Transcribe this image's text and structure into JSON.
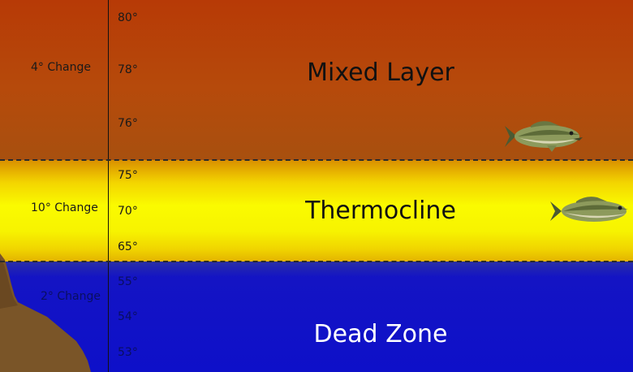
{
  "layers": [
    {
      "name": "Mixed Layer",
      "change": "4° Change",
      "temps": [
        "80°",
        "78°",
        "76°"
      ],
      "color": "#b64a0b"
    },
    {
      "name": "Thermocline",
      "change": "10° Change",
      "temps": [
        "75°",
        "70°",
        "65°"
      ],
      "color": "#f7f300"
    },
    {
      "name": "Dead Zone",
      "change": "2° Change",
      "temps": [
        "55°",
        "54°",
        "53°"
      ],
      "color": "#0e10c9"
    }
  ],
  "fish": [
    {
      "icon": "bass-fish-icon",
      "layer": "Mixed Layer"
    },
    {
      "icon": "bass-fish-icon",
      "layer": "Thermocline"
    }
  ],
  "colors": {
    "divider": "#2b2b2b",
    "axis": "#111111",
    "rock": "#7a5528"
  }
}
